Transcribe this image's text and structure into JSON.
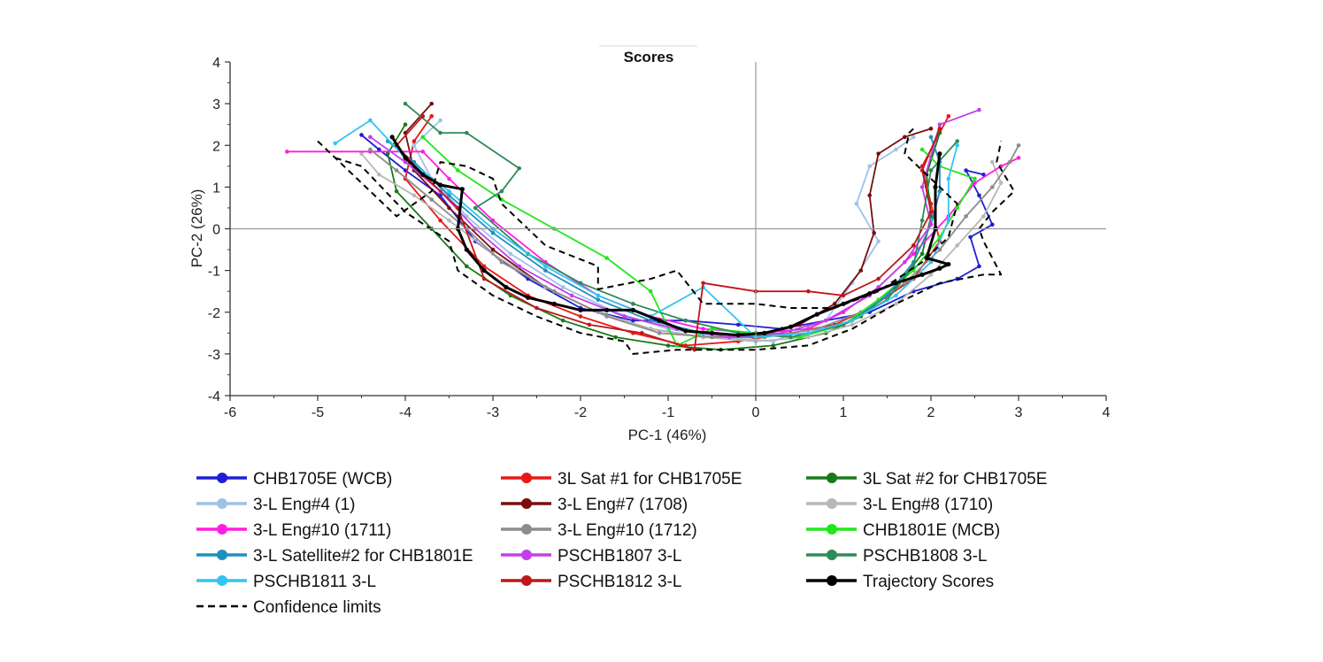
{
  "chart_data": {
    "type": "line",
    "title": "Scores",
    "xlabel": "PC-1 (46%)",
    "ylabel": "PC-2 (26%)",
    "xlim": [
      -6,
      4
    ],
    "ylim": [
      -4,
      4
    ],
    "xticks": [
      "-6",
      "-5",
      "-4",
      "-3",
      "-2",
      "-1",
      "0",
      "1",
      "2",
      "3",
      "4"
    ],
    "yticks": [
      "-4",
      "-3",
      "-2",
      "-1",
      "0",
      "1",
      "2",
      "3",
      "4"
    ],
    "reference_lines": {
      "x": 0,
      "y": 0
    },
    "grid": false,
    "legend_position": "bottom",
    "series": [
      {
        "name": "CHB1705E (WCB)",
        "color": "#1f1fd6",
        "markers": true,
        "x": [
          -4.5,
          -4.3,
          -4.0,
          -3.6,
          -3.2,
          -2.6,
          -2.0,
          -1.4,
          -0.8,
          -0.2,
          0.3,
          0.8,
          1.3,
          1.8,
          2.3,
          2.55,
          2.45,
          2.7,
          2.55,
          2.4,
          2.6
        ],
        "y": [
          2.25,
          1.9,
          1.4,
          0.8,
          -0.3,
          -1.2,
          -1.9,
          -2.2,
          -2.2,
          -2.3,
          -2.4,
          -2.2,
          -2.0,
          -1.5,
          -1.2,
          -0.9,
          -0.2,
          0.1,
          0.8,
          1.4,
          1.3
        ]
      },
      {
        "name": "3L Sat #1 for CHB1705E",
        "color": "#e81818",
        "markers": true,
        "x": [
          -3.7,
          -3.9,
          -4.0,
          -3.6,
          -3.1,
          -2.6,
          -2.0,
          -1.4,
          -0.8,
          -0.2,
          0.4,
          0.9,
          1.3,
          1.8,
          2.1,
          2.0,
          1.9,
          2.1,
          2.2
        ],
        "y": [
          2.7,
          2.1,
          1.2,
          0.2,
          -0.9,
          -1.6,
          -2.1,
          -2.5,
          -2.8,
          -2.7,
          -2.5,
          -2.3,
          -1.9,
          -1.2,
          -0.3,
          0.6,
          1.5,
          2.3,
          2.7
        ]
      },
      {
        "name": "3L Sat #2 for CHB1705E",
        "color": "#1a7a1a",
        "markers": true,
        "x": [
          -4.0,
          -4.2,
          -4.1,
          -3.7,
          -3.3,
          -2.8,
          -2.2,
          -1.6,
          -1.0,
          -0.4,
          0.2,
          0.8,
          1.2,
          1.6,
          1.9,
          2.0,
          1.95,
          2.1
        ],
        "y": [
          2.5,
          1.8,
          0.9,
          0.0,
          -0.9,
          -1.6,
          -2.2,
          -2.6,
          -2.8,
          -2.9,
          -2.8,
          -2.5,
          -2.1,
          -1.4,
          -0.6,
          0.3,
          1.3,
          2.3
        ]
      },
      {
        "name": "3-L Eng#4 (1)",
        "color": "#9fc2e8",
        "markers": true,
        "x": [
          -3.6,
          -3.9,
          -3.7,
          -3.3,
          -2.8,
          -2.2,
          -1.6,
          -1.0,
          -0.4,
          0.2,
          0.8,
          1.1,
          1.4,
          1.15,
          1.3,
          1.6,
          1.8
        ],
        "y": [
          2.6,
          2.0,
          1.2,
          0.3,
          -0.6,
          -1.4,
          -2.0,
          -2.4,
          -2.6,
          -2.7,
          -2.2,
          -1.3,
          -0.3,
          0.6,
          1.5,
          1.9,
          2.2
        ]
      },
      {
        "name": "3-L Eng#7 (1708)",
        "color": "#7a0e0e",
        "markers": true,
        "x": [
          -3.7,
          -4.0,
          -3.9,
          -3.5,
          -3.0,
          -2.4,
          -1.8,
          -1.2,
          -0.6,
          0.0,
          0.5,
          0.9,
          1.2,
          1.35,
          1.3,
          1.4,
          1.7,
          2.0
        ],
        "y": [
          3.0,
          2.3,
          1.4,
          0.5,
          -0.5,
          -1.4,
          -2.0,
          -2.4,
          -2.6,
          -2.6,
          -2.3,
          -1.8,
          -1.0,
          -0.1,
          0.8,
          1.8,
          2.2,
          2.4
        ]
      },
      {
        "name": "3-L Eng#8 (1710)",
        "color": "#b8b8b8",
        "markers": true,
        "x": [
          -4.5,
          -4.3,
          -3.9,
          -3.5,
          -3.0,
          -2.4,
          -1.8,
          -1.2,
          -0.6,
          0.0,
          0.6,
          1.1,
          1.6,
          2.0,
          2.3,
          2.6,
          2.8,
          2.7
        ],
        "y": [
          1.8,
          1.3,
          0.8,
          0.2,
          -0.6,
          -1.4,
          -2.0,
          -2.4,
          -2.6,
          -2.7,
          -2.6,
          -2.3,
          -1.8,
          -1.1,
          -0.4,
          0.3,
          1.1,
          1.6
        ]
      },
      {
        "name": "3-L Eng#10 (1711)",
        "color": "#ff1ee0",
        "markers": true,
        "x": [
          -5.35,
          -4.4,
          -3.8,
          -3.5,
          -3.0,
          -2.4,
          -1.8,
          -1.2,
          -0.6,
          0.0,
          0.6,
          1.0,
          1.4,
          1.8,
          2.2,
          2.5,
          2.8,
          3.0
        ],
        "y": [
          1.85,
          1.85,
          1.85,
          1.2,
          0.2,
          -0.8,
          -1.6,
          -2.1,
          -2.4,
          -2.5,
          -2.4,
          -2.0,
          -1.4,
          -0.6,
          0.3,
          1.1,
          1.5,
          1.7
        ]
      },
      {
        "name": "3-L Eng#10 (1712)",
        "color": "#8c8c8c",
        "markers": true,
        "x": [
          -4.4,
          -4.1,
          -3.7,
          -3.3,
          -2.9,
          -2.3,
          -1.7,
          -1.1,
          -0.5,
          0.1,
          0.7,
          1.2,
          1.7,
          2.1,
          2.4,
          2.7,
          2.9,
          3.0
        ],
        "y": [
          1.9,
          1.4,
          0.7,
          0.0,
          -0.8,
          -1.5,
          -2.1,
          -2.5,
          -2.6,
          -2.6,
          -2.4,
          -2.0,
          -1.3,
          -0.5,
          0.3,
          1.0,
          1.6,
          2.0
        ]
      },
      {
        "name": "CHB1801E (MCB)",
        "color": "#22e61c",
        "markers": true,
        "x": [
          -3.8,
          -3.4,
          -2.9,
          -2.3,
          -1.7,
          -1.2,
          -0.9,
          -0.5,
          0.0,
          0.5,
          1.0,
          1.4,
          1.8,
          2.1,
          2.3,
          2.5,
          2.1,
          1.9
        ],
        "y": [
          2.2,
          1.4,
          0.7,
          0.0,
          -0.7,
          -1.5,
          -2.8,
          -2.4,
          -2.5,
          -2.6,
          -2.3,
          -1.7,
          -1.0,
          -0.2,
          0.5,
          1.2,
          1.5,
          1.9
        ]
      },
      {
        "name": "3-L Satellite#2 for CHB1801E",
        "color": "#1f8fc0",
        "markers": true,
        "x": [
          -4.2,
          -3.9,
          -3.5,
          -3.0,
          -2.4,
          -1.8,
          -1.2,
          -0.6,
          0.0,
          0.6,
          1.1,
          1.5,
          1.8,
          2.0,
          2.1,
          2.1,
          2.0
        ],
        "y": [
          2.1,
          1.6,
          0.8,
          -0.1,
          -1.0,
          -1.7,
          -2.2,
          -2.5,
          -2.6,
          -2.5,
          -2.2,
          -1.6,
          -0.8,
          0.1,
          0.9,
          1.6,
          2.2
        ]
      },
      {
        "name": "PSCHB1807 3-L",
        "color": "#c43ee8",
        "markers": true,
        "x": [
          -4.4,
          -4.0,
          -3.6,
          -3.2,
          -2.7,
          -2.1,
          -1.5,
          -0.9,
          -0.3,
          0.3,
          0.8,
          1.3,
          1.7,
          2.0,
          1.9,
          2.1,
          2.55
        ],
        "y": [
          2.2,
          1.6,
          0.9,
          0.0,
          -0.9,
          -1.6,
          -2.1,
          -2.4,
          -2.6,
          -2.5,
          -2.2,
          -1.6,
          -0.8,
          0.1,
          1.0,
          2.5,
          2.85
        ]
      },
      {
        "name": "PSCHB1808 3-L",
        "color": "#2e8b57",
        "markers": true,
        "x": [
          -4.0,
          -3.6,
          -3.3,
          -2.7,
          -2.9,
          -3.2,
          -2.6,
          -2.0,
          -1.4,
          -0.8,
          -0.2,
          0.4,
          1.0,
          1.5,
          1.8,
          1.9,
          2.0,
          2.3
        ],
        "y": [
          3.0,
          2.3,
          2.3,
          1.45,
          0.9,
          0.5,
          -0.6,
          -1.3,
          -1.8,
          -2.2,
          -2.5,
          -2.6,
          -2.3,
          -1.7,
          -0.9,
          0.2,
          1.4,
          2.1
        ]
      },
      {
        "name": "PSCHB1811 3-L",
        "color": "#33c4f0",
        "markers": true,
        "x": [
          -4.8,
          -4.4,
          -4.0,
          -3.5,
          -3.0,
          -2.4,
          -1.8,
          -1.2,
          -0.6,
          0.0,
          0.6,
          1.1,
          1.6,
          2.0,
          2.2,
          2.2,
          2.3
        ],
        "y": [
          2.05,
          2.6,
          1.7,
          0.9,
          0.0,
          -0.9,
          -1.6,
          -2.1,
          -1.4,
          -2.6,
          -2.5,
          -2.2,
          -1.6,
          -0.8,
          0.2,
          1.2,
          2.0
        ]
      },
      {
        "name": "PSCHB1812 3-L",
        "color": "#c0161b",
        "markers": true,
        "x": [
          -3.8,
          -4.1,
          -3.8,
          -3.4,
          -3.1,
          -2.5,
          -1.9,
          -1.3,
          -0.7,
          -0.6,
          0.0,
          0.6,
          1.0,
          1.4,
          1.8,
          2.0,
          1.9,
          2.1
        ],
        "y": [
          2.7,
          2.0,
          1.3,
          0.5,
          -1.2,
          -1.9,
          -2.3,
          -2.5,
          -2.9,
          -1.3,
          -1.5,
          -1.5,
          -1.6,
          -1.2,
          -0.4,
          0.4,
          1.4,
          2.4
        ]
      },
      {
        "name": "Trajectory Scores",
        "color": "#000000",
        "markers": true,
        "bold": true,
        "x": [
          -4.15,
          -4.0,
          -3.8,
          -3.6,
          -3.35,
          -3.4,
          -3.3,
          -3.1,
          -2.85,
          -2.6,
          -2.3,
          -2.0,
          -1.7,
          -1.4,
          -1.1,
          -0.8,
          -0.5,
          -0.2,
          0.1,
          0.4,
          0.7,
          1.0,
          1.3,
          1.6,
          1.9,
          2.1,
          2.2,
          1.95,
          2.05,
          2.05,
          2.1
        ],
        "y": [
          2.2,
          1.7,
          1.3,
          1.05,
          0.95,
          0.0,
          -0.5,
          -1.0,
          -1.4,
          -1.65,
          -1.8,
          -1.95,
          -1.95,
          -1.95,
          -2.2,
          -2.45,
          -2.5,
          -2.55,
          -2.5,
          -2.35,
          -2.05,
          -1.8,
          -1.55,
          -1.3,
          -1.1,
          -0.95,
          -0.85,
          -0.7,
          0.0,
          1.0,
          1.8
        ]
      },
      {
        "name": "Confidence limits",
        "color": "#000000",
        "dashed": true,
        "markers": false,
        "x": [
          -5.0,
          -4.1,
          -3.7,
          -3.6,
          -3.3,
          -3.0,
          -2.9,
          -2.4,
          -1.8,
          -1.8,
          -1.2,
          -0.9,
          -0.6,
          0.0,
          0.4,
          0.9,
          1.4,
          1.9,
          2.2,
          2.3,
          2.0,
          1.8,
          1.7,
          1.75,
          1.8
        ],
        "y": [
          2.1,
          0.3,
          0.9,
          1.6,
          1.5,
          1.2,
          0.6,
          -0.4,
          -0.9,
          -1.45,
          -1.2,
          -1.0,
          -1.8,
          -1.8,
          -1.9,
          -1.9,
          -1.5,
          -0.8,
          -0.2,
          0.6,
          1.2,
          1.6,
          1.8,
          2.3,
          2.4
        ]
      },
      {
        "name": "",
        "color": "#000000",
        "dashed": true,
        "markers": false,
        "in_legend": false,
        "x": [
          -4.8,
          -4.5,
          -4.0,
          -3.5,
          -3.4,
          -3.0,
          -2.5,
          -2.0,
          -1.5,
          -1.4,
          -0.9,
          0.0,
          0.6,
          1.1,
          1.6,
          2.1,
          2.6,
          2.8,
          2.6,
          2.55,
          2.7,
          2.95,
          2.75,
          2.8
        ],
        "y": [
          1.7,
          1.5,
          0.4,
          -0.3,
          -1.0,
          -1.6,
          -2.1,
          -2.5,
          -2.7,
          -3.0,
          -2.9,
          -2.9,
          -2.8,
          -2.4,
          -1.8,
          -1.3,
          -1.1,
          -1.1,
          -0.3,
          0.0,
          0.4,
          0.9,
          1.6,
          2.1
        ]
      }
    ]
  }
}
